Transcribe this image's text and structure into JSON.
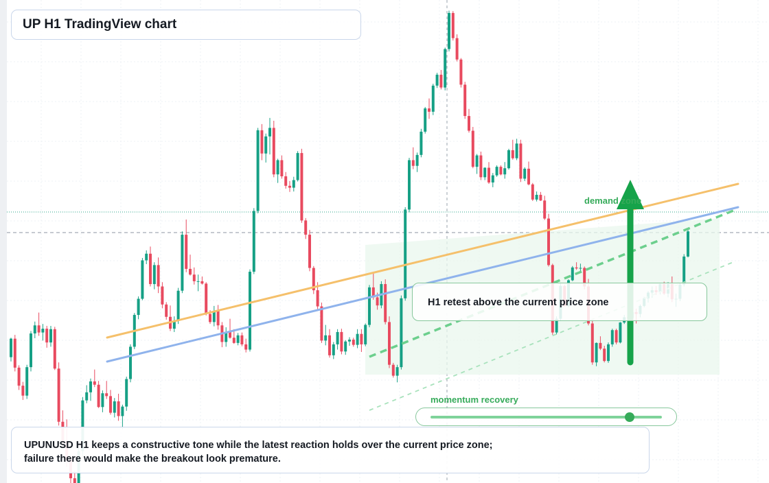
{
  "title": "UP H1 TradingView chart",
  "note": "UPUNUSD H1 keeps a constructive tone while the latest reaction holds over the current price zone; failure there would make the breakout look premature.",
  "callout": "H1 retest above the current price zone",
  "zone_label": "demand zone",
  "momentum": {
    "label": "momentum recovery",
    "level": 0.86
  },
  "colors": {
    "up": "#16a085",
    "down": "#e84a5f",
    "orange": "#f5c06b",
    "blue": "#8fb3ec",
    "green": "#36ab5a",
    "arrow": "#16a34a"
  },
  "chart_data": {
    "type": "candlestick",
    "timeframe": "H1",
    "symbol": "UPUNUSD",
    "ylim": [
      0,
      100
    ],
    "current_price": 52.8,
    "ohlc": [
      [
        26.5,
        30.6,
        25.6,
        30.4
      ],
      [
        30.4,
        31.2,
        23.5,
        24.3
      ],
      [
        24.3,
        24.8,
        19.6,
        20.5
      ],
      [
        20.5,
        21.3,
        17.5,
        18.4
      ],
      [
        18.4,
        24.9,
        17.7,
        24.4
      ],
      [
        24.4,
        32.0,
        23.5,
        31.5
      ],
      [
        31.5,
        34.0,
        30.5,
        33.2
      ],
      [
        33.2,
        35.9,
        31.0,
        31.7
      ],
      [
        31.7,
        33.5,
        30.0,
        32.5
      ],
      [
        32.5,
        33.1,
        28.5,
        29.6
      ],
      [
        29.6,
        33.1,
        28.7,
        32.4
      ],
      [
        32.4,
        32.9,
        23.8,
        24.1
      ],
      [
        24.1,
        25.4,
        12.1,
        12.9
      ],
      [
        12.9,
        15.3,
        7.7,
        8.8
      ],
      [
        8.8,
        13.4,
        3.4,
        4.8
      ],
      [
        4.8,
        5.5,
        0.0,
        1.0
      ],
      [
        1.0,
        2.6,
        0.0,
        0.0
      ],
      [
        0.0,
        7.4,
        0.0,
        6.7
      ],
      [
        6.7,
        18.1,
        5.7,
        17.4
      ],
      [
        17.4,
        20.6,
        16.8,
        19.1
      ],
      [
        19.1,
        22.0,
        17.3,
        21.4
      ],
      [
        21.4,
        23.9,
        20.2,
        20.7
      ],
      [
        20.7,
        21.5,
        15.8,
        16.0
      ],
      [
        16.0,
        19.5,
        14.9,
        18.9
      ],
      [
        18.9,
        21.5,
        17.7,
        18.3
      ],
      [
        18.3,
        19.6,
        14.4,
        14.8
      ],
      [
        14.8,
        17.9,
        13.8,
        17.2
      ],
      [
        17.2,
        18.8,
        13.1,
        14.1
      ],
      [
        14.1,
        16.5,
        11.3,
        16.1
      ],
      [
        16.1,
        22.4,
        15.2,
        21.9
      ],
      [
        21.9,
        29.2,
        21.2,
        28.7
      ],
      [
        28.7,
        35.8,
        28.2,
        35.4
      ],
      [
        35.4,
        39.3,
        34.5,
        38.8
      ],
      [
        38.8,
        47.4,
        38.5,
        46.9
      ],
      [
        46.9,
        49.0,
        46.1,
        48.3
      ],
      [
        48.3,
        49.8,
        41.4,
        41.9
      ],
      [
        41.9,
        46.5,
        40.8,
        45.9
      ],
      [
        45.9,
        47.5,
        40.0,
        41.4
      ],
      [
        41.4,
        42.3,
        36.8,
        37.6
      ],
      [
        37.6,
        38.1,
        34.4,
        35.0
      ],
      [
        35.0,
        37.4,
        32.0,
        32.5
      ],
      [
        32.5,
        35.1,
        31.8,
        34.2
      ],
      [
        34.2,
        41.1,
        33.5,
        40.5
      ],
      [
        40.5,
        53.0,
        40.0,
        52.3
      ],
      [
        52.3,
        55.5,
        44.4,
        45.1
      ],
      [
        45.1,
        48.1,
        43.7,
        43.9
      ],
      [
        43.9,
        45.4,
        41.8,
        42.5
      ],
      [
        42.5,
        43.9,
        40.4,
        42.5
      ],
      [
        42.5,
        43.5,
        41.8,
        42.0
      ],
      [
        42.0,
        42.3,
        35.3,
        35.6
      ],
      [
        35.6,
        36.4,
        33.5,
        33.9
      ],
      [
        33.9,
        37.3,
        33.0,
        36.2
      ],
      [
        36.2,
        37.5,
        32.3,
        33.2
      ],
      [
        33.2,
        33.9,
        28.6,
        29.7
      ],
      [
        29.7,
        32.8,
        28.7,
        31.8
      ],
      [
        31.8,
        34.6,
        30.4,
        30.6
      ],
      [
        30.6,
        32.4,
        29.3,
        29.5
      ],
      [
        29.5,
        31.6,
        29.0,
        31.1
      ],
      [
        31.1,
        31.7,
        28.8,
        29.2
      ],
      [
        29.2,
        30.4,
        27.5,
        28.1
      ],
      [
        28.1,
        45.0,
        27.7,
        44.5
      ],
      [
        44.5,
        57.9,
        44.0,
        57.3
      ],
      [
        57.3,
        74.8,
        56.8,
        74.3
      ],
      [
        74.3,
        75.6,
        68.0,
        69.4
      ],
      [
        69.4,
        73.6,
        67.5,
        73.0
      ],
      [
        73.0,
        76.9,
        69.2,
        74.8
      ],
      [
        74.8,
        76.3,
        64.4,
        65.0
      ],
      [
        65.0,
        68.3,
        63.2,
        68.0
      ],
      [
        68.0,
        69.0,
        64.1,
        64.6
      ],
      [
        64.6,
        65.5,
        62.0,
        62.6
      ],
      [
        62.6,
        63.6,
        61.3,
        62.2
      ],
      [
        62.2,
        64.5,
        61.4,
        63.8
      ],
      [
        63.8,
        69.9,
        63.5,
        69.5
      ],
      [
        69.5,
        70.4,
        54.8,
        55.3
      ],
      [
        55.3,
        55.8,
        51.4,
        52.3
      ],
      [
        52.3,
        53.3,
        44.6,
        45.3
      ],
      [
        45.3,
        45.7,
        39.8,
        40.6
      ],
      [
        40.6,
        42.3,
        36.5,
        37.2
      ],
      [
        37.2,
        38.0,
        29.5,
        30.0
      ],
      [
        30.0,
        33.3,
        29.0,
        31.1
      ],
      [
        31.1,
        32.4,
        26.4,
        26.9
      ],
      [
        26.9,
        29.7,
        26.1,
        29.2
      ],
      [
        29.2,
        32.4,
        28.1,
        31.8
      ],
      [
        31.8,
        32.5,
        27.1,
        27.7
      ],
      [
        27.7,
        30.1,
        27.0,
        29.8
      ],
      [
        29.8,
        30.7,
        28.9,
        30.2
      ],
      [
        30.2,
        30.6,
        28.7,
        29.1
      ],
      [
        29.1,
        32.4,
        28.4,
        31.4
      ],
      [
        31.4,
        32.4,
        27.6,
        29.2
      ],
      [
        29.2,
        33.6,
        28.8,
        33.3
      ],
      [
        33.3,
        41.7,
        32.8,
        41.2
      ],
      [
        41.2,
        44.5,
        38.6,
        39.1
      ],
      [
        39.1,
        40.1,
        36.5,
        37.4
      ],
      [
        37.4,
        42.5,
        36.8,
        41.9
      ],
      [
        41.9,
        42.9,
        33.4,
        33.9
      ],
      [
        33.9,
        35.1,
        24.2,
        24.9
      ],
      [
        24.9,
        25.3,
        22.2,
        22.6
      ],
      [
        22.6,
        24.9,
        21.2,
        24.4
      ],
      [
        24.4,
        39.5,
        23.9,
        38.9
      ],
      [
        38.9,
        58.1,
        38.4,
        57.6
      ],
      [
        57.6,
        68.5,
        57.0,
        68.0
      ],
      [
        68.0,
        70.7,
        66.1,
        66.8
      ],
      [
        66.8,
        69.6,
        65.5,
        69.1
      ],
      [
        69.1,
        74.6,
        68.6,
        74.0
      ],
      [
        74.0,
        79.2,
        73.6,
        78.9
      ],
      [
        78.9,
        81.0,
        76.7,
        78.2
      ],
      [
        78.2,
        84.1,
        77.5,
        83.7
      ],
      [
        83.7,
        86.4,
        83.2,
        86.0
      ],
      [
        86.0,
        87.0,
        82.9,
        83.3
      ],
      [
        83.3,
        91.7,
        82.7,
        91.4
      ],
      [
        91.4,
        99.5,
        90.9,
        99.0
      ],
      [
        99.0,
        99.4,
        93.2,
        93.7
      ],
      [
        93.7,
        94.5,
        88.8,
        89.2
      ],
      [
        89.2,
        89.5,
        83.3,
        83.9
      ],
      [
        83.9,
        84.5,
        76.7,
        77.3
      ],
      [
        77.3,
        78.8,
        73.8,
        74.2
      ],
      [
        74.2,
        75.0,
        66.3,
        66.6
      ],
      [
        66.6,
        69.3,
        65.1,
        69.0
      ],
      [
        69.0,
        69.8,
        63.8,
        64.4
      ],
      [
        64.4,
        66.5,
        63.8,
        66.4
      ],
      [
        66.4,
        67.6,
        63.0,
        63.3
      ],
      [
        63.3,
        65.3,
        62.3,
        64.8
      ],
      [
        64.8,
        66.9,
        64.5,
        66.6
      ],
      [
        66.6,
        66.9,
        64.8,
        65.0
      ],
      [
        65.0,
        67.6,
        64.1,
        66.3
      ],
      [
        66.3,
        70.4,
        66.0,
        70.1
      ],
      [
        70.1,
        72.3,
        68.1,
        68.4
      ],
      [
        68.4,
        72.5,
        68.0,
        71.5
      ],
      [
        71.5,
        72.3,
        63.4,
        64.1
      ],
      [
        64.1,
        66.5,
        63.6,
        66.2
      ],
      [
        66.2,
        67.7,
        62.7,
        62.9
      ],
      [
        62.9,
        63.2,
        59.4,
        59.7
      ],
      [
        59.7,
        61.4,
        59.3,
        60.7
      ],
      [
        60.7,
        61.3,
        59.4,
        59.5
      ],
      [
        59.5,
        60.5,
        55.4,
        55.7
      ],
      [
        55.7,
        56.7,
        45.6,
        45.9
      ],
      [
        45.9,
        46.2,
        31.2,
        31.7
      ],
      [
        31.7,
        35.1,
        31.3,
        34.6
      ],
      [
        34.6,
        42.0,
        34.1,
        41.5
      ],
      [
        41.5,
        41.8,
        37.1,
        37.3
      ],
      [
        37.3,
        42.9,
        37.0,
        42.7
      ],
      [
        42.7,
        45.7,
        42.5,
        45.4
      ],
      [
        45.4,
        46.5,
        44.9,
        45.2
      ],
      [
        45.2,
        46.2,
        44.6,
        45.3
      ],
      [
        45.3,
        45.6,
        40.8,
        41.4
      ],
      [
        41.4,
        43.0,
        33.2,
        33.6
      ],
      [
        33.6,
        34.6,
        24.9,
        25.4
      ],
      [
        25.4,
        29.6,
        24.6,
        29.5
      ],
      [
        29.5,
        30.9,
        28.0,
        28.3
      ],
      [
        28.3,
        28.9,
        25.4,
        25.7
      ],
      [
        25.7,
        29.6,
        25.3,
        29.2
      ],
      [
        29.2,
        32.5,
        28.7,
        32.2
      ],
      [
        32.2,
        32.5,
        29.2,
        29.6
      ],
      [
        29.6,
        33.9,
        29.4,
        33.8
      ],
      [
        33.8,
        35.4,
        33.5,
        34.9
      ],
      [
        34.9,
        35.5,
        33.7,
        34.8
      ],
      [
        34.8,
        37.5,
        34.3,
        36.0
      ],
      [
        36.0,
        36.7,
        33.6,
        35.6
      ],
      [
        35.6,
        37.6,
        34.9,
        37.3
      ],
      [
        37.3,
        39.2,
        37.0,
        38.9
      ],
      [
        38.9,
        40.4,
        38.0,
        40.1
      ],
      [
        40.1,
        41.4,
        39.0,
        40.6
      ],
      [
        40.6,
        41.5,
        39.6,
        40.2
      ],
      [
        40.2,
        42.0,
        39.7,
        41.9
      ],
      [
        41.9,
        42.4,
        39.6,
        39.9
      ],
      [
        39.9,
        42.3,
        39.1,
        41.9
      ],
      [
        41.9,
        43.5,
        38.1,
        38.7
      ],
      [
        38.7,
        39.9,
        37.1,
        38.8
      ],
      [
        38.8,
        42.1,
        38.3,
        41.8
      ],
      [
        41.8,
        48.2,
        41.4,
        47.7
      ],
      [
        47.7,
        53.3,
        47.5,
        53.0
      ]
    ]
  }
}
